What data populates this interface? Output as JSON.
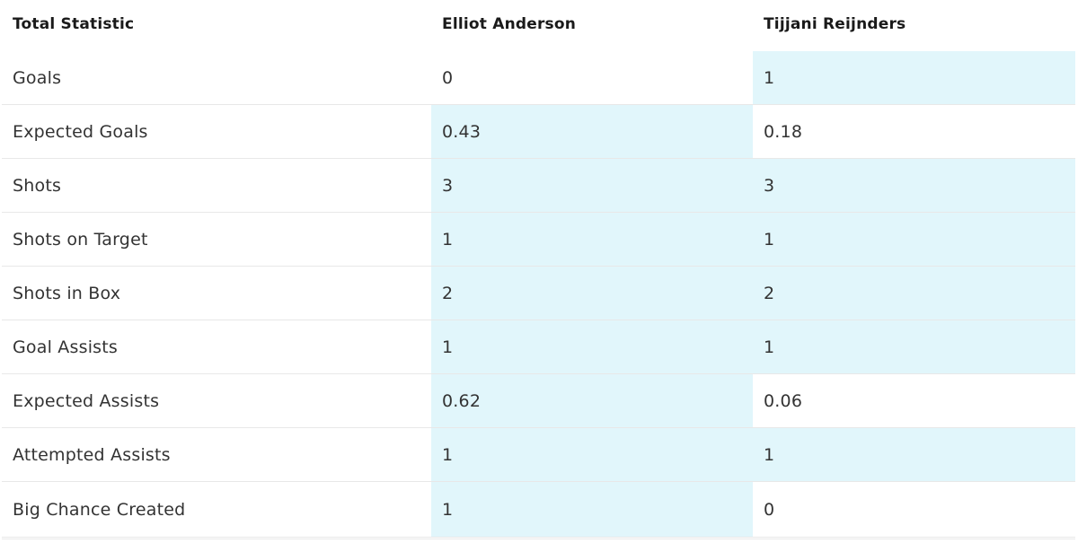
{
  "table": {
    "headers": {
      "label": "Total Statistic",
      "player_a": "Elliot Anderson",
      "player_b": "Tijjani Reijnders"
    },
    "highlight_color": "#e1f6fb",
    "rows": [
      {
        "stat": "Goals",
        "a": "0",
        "b": "1",
        "a_highlight": false,
        "b_highlight": true
      },
      {
        "stat": "Expected Goals",
        "a": "0.43",
        "b": "0.18",
        "a_highlight": true,
        "b_highlight": false
      },
      {
        "stat": "Shots",
        "a": "3",
        "b": "3",
        "a_highlight": true,
        "b_highlight": true
      },
      {
        "stat": "Shots on Target",
        "a": "1",
        "b": "1",
        "a_highlight": true,
        "b_highlight": true
      },
      {
        "stat": "Shots in Box",
        "a": "2",
        "b": "2",
        "a_highlight": true,
        "b_highlight": true
      },
      {
        "stat": "Goal Assists",
        "a": "1",
        "b": "1",
        "a_highlight": true,
        "b_highlight": true
      },
      {
        "stat": "Expected Assists",
        "a": "0.62",
        "b": "0.06",
        "a_highlight": true,
        "b_highlight": false
      },
      {
        "stat": "Attempted Assists",
        "a": "1",
        "b": "1",
        "a_highlight": true,
        "b_highlight": true
      },
      {
        "stat": "Big Chance Created",
        "a": "1",
        "b": "0",
        "a_highlight": true,
        "b_highlight": false
      }
    ]
  }
}
